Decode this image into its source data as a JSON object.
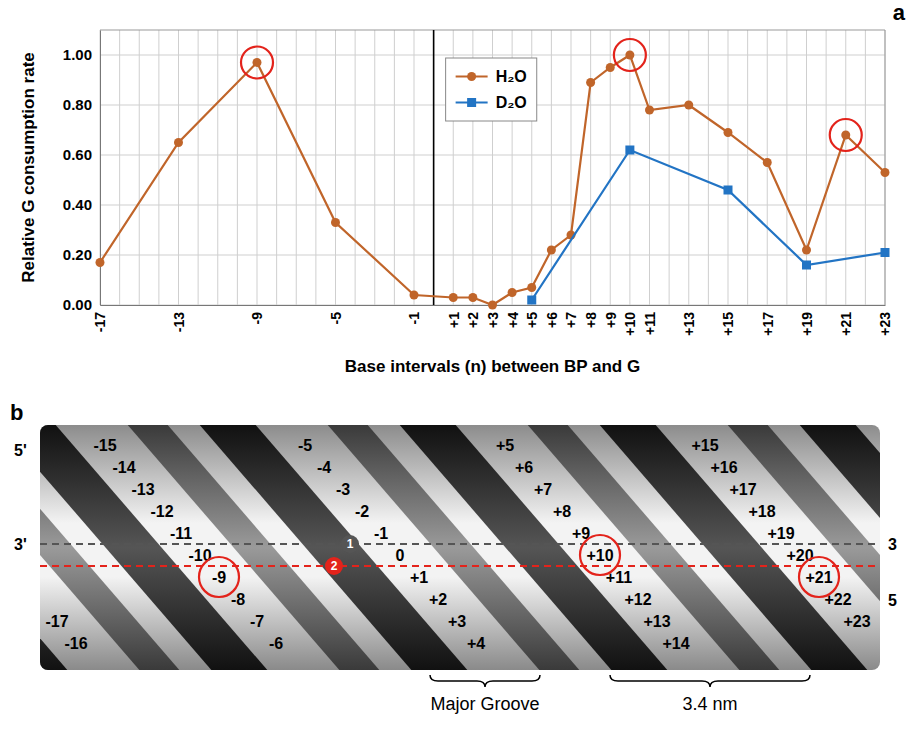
{
  "chart_data": {
    "type": "line",
    "panel_label": "a",
    "x_label": "Base intervals (n) between BP and G",
    "y_label": "Relative G consumption rate",
    "xlim": [
      -17,
      23
    ],
    "ylim": [
      0,
      1.1
    ],
    "xticks": [
      -17,
      -13,
      -9,
      -5,
      -1,
      {
        "value": 1,
        "label": "+1"
      },
      {
        "value": 2,
        "label": "+2"
      },
      {
        "value": 3,
        "label": "+3"
      },
      {
        "value": 4,
        "label": "+4"
      },
      {
        "value": 5,
        "label": "+5"
      },
      {
        "value": 6,
        "label": "+6"
      },
      {
        "value": 7,
        "label": "+7"
      },
      {
        "value": 8,
        "label": "+8"
      },
      {
        "value": 9,
        "label": "+9"
      },
      {
        "value": 10,
        "label": "+10"
      },
      {
        "value": 11,
        "label": "+11"
      },
      {
        "value": 13,
        "label": "+13"
      },
      {
        "value": 15,
        "label": "+15"
      },
      {
        "value": 17,
        "label": "+17"
      },
      {
        "value": 19,
        "label": "+19"
      },
      {
        "value": 21,
        "label": "+21"
      },
      {
        "value": 23,
        "label": "+23"
      }
    ],
    "yticks": [
      {
        "value": 0,
        "label": "0.00"
      },
      {
        "value": 0.2,
        "label": "0.20"
      },
      {
        "value": 0.4,
        "label": "0.40"
      },
      {
        "value": 0.6,
        "label": "0.60"
      },
      {
        "value": 0.8,
        "label": "0.80"
      },
      {
        "value": 1,
        "label": "1.00"
      }
    ],
    "xgrid": [
      -17,
      -16,
      -15,
      -14,
      -13,
      -12,
      -11,
      -10,
      -9,
      -8,
      -7,
      -6,
      -5,
      -4,
      -3,
      -2,
      -1,
      0,
      1,
      2,
      3,
      4,
      5,
      6,
      7,
      8,
      9,
      10,
      11,
      12,
      13,
      14,
      15,
      16,
      17,
      18,
      19,
      20,
      21,
      22,
      23
    ],
    "grid": true,
    "legend": "upper center",
    "reference_x": 0,
    "highlight_x": [
      -9,
      10,
      21
    ],
    "highlight_color": "#e3231b",
    "series": [
      {
        "name": "H₂O",
        "color": "#c0652a",
        "marker": "circle",
        "x": [
          -17,
          -13,
          -9,
          -5,
          -1,
          1,
          2,
          3,
          4,
          5,
          6,
          7,
          8,
          9,
          10,
          11,
          13,
          15,
          17,
          19,
          21,
          23
        ],
        "values": [
          0.17,
          0.65,
          0.97,
          0.33,
          0.04,
          0.03,
          0.03,
          0.0,
          0.05,
          0.07,
          0.22,
          0.28,
          0.89,
          0.95,
          1.0,
          0.78,
          0.8,
          0.69,
          0.57,
          0.22,
          0.68,
          0.53
        ]
      },
      {
        "name": "D₂O",
        "color": "#2274c4",
        "marker": "square",
        "x": [
          5,
          10,
          15,
          19,
          23
        ],
        "values": [
          0.02,
          0.62,
          0.46,
          0.16,
          0.21
        ]
      }
    ]
  },
  "diagram": {
    "panel_label": "b",
    "strand_ends_left": [
      "5'",
      "3'"
    ],
    "strand_ends_right": [
      "3",
      "5"
    ],
    "bases": [
      "-17",
      "-16",
      "-15",
      "-14",
      "-13",
      "-12",
      "-11",
      "-10",
      "-9",
      "-8",
      "-7",
      "-6",
      "-5",
      "-4",
      "-3",
      "-2",
      "-1",
      "0",
      "+1",
      "+2",
      "+3",
      "+4",
      "+5",
      "+6",
      "+7",
      "+8",
      "+9",
      "+10",
      "+11",
      "+12",
      "+13",
      "+14",
      "+15",
      "+16",
      "+17",
      "+18",
      "+19",
      "+20",
      "+21",
      "+22",
      "+23"
    ],
    "highlighted": [
      "-9",
      "+10",
      "+21"
    ],
    "markers": [
      {
        "label": "1",
        "color": "#555555"
      },
      {
        "label": "2",
        "color": "#e3231b"
      }
    ],
    "annotations": [
      "Major Groove",
      "3.4 nm"
    ]
  }
}
